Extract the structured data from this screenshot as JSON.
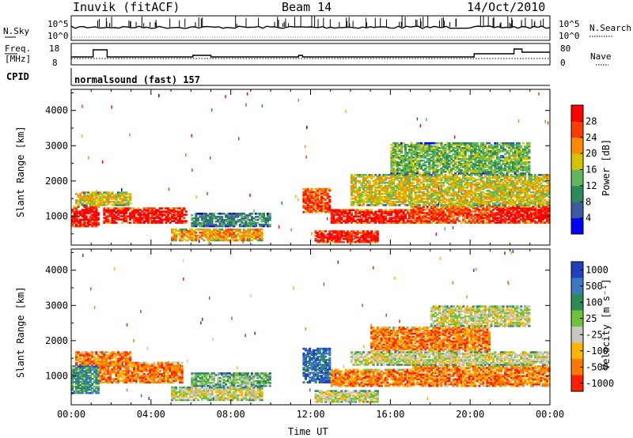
{
  "header": {
    "site": "Inuvik (fitACF)",
    "beam": "Beam 14",
    "date": "14/Oct/2010"
  },
  "top_panels": {
    "nsky_label": "N.Sky",
    "nsky_ticks": [
      "10^5",
      "10^0"
    ],
    "nsearch_label": "N.Search",
    "nsearch_ticks": [
      "10^5",
      "10^0"
    ],
    "freq_label_1": "Freq.",
    "freq_label_2": "[MHz]",
    "freq_ticks": [
      "18",
      "8"
    ],
    "nave_label": "Nave",
    "nave_ticks": [
      "80",
      "0"
    ],
    "cpid_label": "CPID",
    "cpid_value": "normalsound (fast) 157"
  },
  "chart_data": [
    {
      "type": "heatmap",
      "panel": "power",
      "ylabel": "Slant Range [km]",
      "yticks": [
        "1000",
        "2000",
        "3000",
        "4000"
      ],
      "ylim": [
        180,
        4600
      ],
      "xlim": [
        0,
        24
      ],
      "colorbar_label": "Power [dB]",
      "colorbar_ticks": [
        "4",
        "8",
        "12",
        "16",
        "20",
        "24",
        "28"
      ],
      "colors": [
        "#0000ff",
        "#3c5aa0",
        "#2e8b57",
        "#5fb85f",
        "#d4c400",
        "#ff8c00",
        "#ff3c00",
        "#ff0000"
      ],
      "regions": [
        {
          "t0": 0,
          "t1": 1.4,
          "r0": 700,
          "r1": 1300,
          "level": 7
        },
        {
          "t0": 1.6,
          "t1": 5.8,
          "r0": 800,
          "r1": 1250,
          "level": 7
        },
        {
          "t0": 0.2,
          "t1": 3.0,
          "r0": 1300,
          "r1": 1700,
          "level": 4
        },
        {
          "t0": 5.0,
          "t1": 9.6,
          "r0": 300,
          "r1": 650,
          "level": 5
        },
        {
          "t0": 6.0,
          "t1": 10.0,
          "r0": 700,
          "r1": 1100,
          "level": 2
        },
        {
          "t0": 11.6,
          "t1": 13.0,
          "r0": 1100,
          "r1": 1800,
          "level": 6
        },
        {
          "t0": 12.2,
          "t1": 15.4,
          "r0": 250,
          "r1": 600,
          "level": 7
        },
        {
          "t0": 13.0,
          "t1": 17.0,
          "r0": 800,
          "r1": 1200,
          "level": 7
        },
        {
          "t0": 17.0,
          "t1": 21.0,
          "r0": 800,
          "r1": 1300,
          "level": 6
        },
        {
          "t0": 21.0,
          "t1": 24.0,
          "r0": 800,
          "r1": 1300,
          "level": 7
        },
        {
          "t0": 14.0,
          "t1": 24.0,
          "r0": 1300,
          "r1": 2200,
          "level": 4
        },
        {
          "t0": 16.0,
          "t1": 23.0,
          "r0": 2200,
          "r1": 3100,
          "level": 3
        }
      ]
    },
    {
      "type": "heatmap",
      "panel": "velocity",
      "ylabel": "Slant Range [km]",
      "yticks": [
        "1000",
        "2000",
        "3000",
        "4000"
      ],
      "ylim": [
        180,
        4600
      ],
      "xlim": [
        0,
        24
      ],
      "xticks": [
        "00:00",
        "04:00",
        "08:00",
        "12:00",
        "16:00",
        "20:00",
        "00:00"
      ],
      "xlabel": "Time UT",
      "colorbar_label": "Velocity [m s⁻¹]",
      "colorbar_ticks": [
        "1000",
        "500",
        "100",
        "25",
        "-25",
        "-100",
        "-500",
        "-1000"
      ],
      "colors": [
        "#2040c0",
        "#3a78c0",
        "#2e8b57",
        "#6fc03c",
        "#c8c8c0",
        "#ffb400",
        "#ff7800",
        "#ff1e00"
      ],
      "regions": [
        {
          "t0": 0,
          "t1": 1.4,
          "r0": 500,
          "r1": 1300,
          "level": 2
        },
        {
          "t0": 1.4,
          "t1": 5.6,
          "r0": 800,
          "r1": 1400,
          "level": 6
        },
        {
          "t0": 0.2,
          "t1": 3.0,
          "r0": 1300,
          "r1": 1700,
          "level": 6
        },
        {
          "t0": 5.0,
          "t1": 9.6,
          "r0": 300,
          "r1": 700,
          "level": 4
        },
        {
          "t0": 6.0,
          "t1": 10.0,
          "r0": 700,
          "r1": 1100,
          "level": 3
        },
        {
          "t0": 11.6,
          "t1": 13.0,
          "r0": 800,
          "r1": 1800,
          "level": 1
        },
        {
          "t0": 12.2,
          "t1": 15.4,
          "r0": 250,
          "r1": 600,
          "level": 4
        },
        {
          "t0": 13.0,
          "t1": 17.0,
          "r0": 700,
          "r1": 1200,
          "level": 6
        },
        {
          "t0": 17.0,
          "t1": 24.0,
          "r0": 700,
          "r1": 1300,
          "level": 6
        },
        {
          "t0": 14.0,
          "t1": 24.0,
          "r0": 1300,
          "r1": 1700,
          "level": 4
        },
        {
          "t0": 15.0,
          "t1": 21.0,
          "r0": 1700,
          "r1": 2400,
          "level": 6
        },
        {
          "t0": 18.0,
          "t1": 23.0,
          "r0": 2400,
          "r1": 3000,
          "level": 4
        }
      ]
    }
  ]
}
